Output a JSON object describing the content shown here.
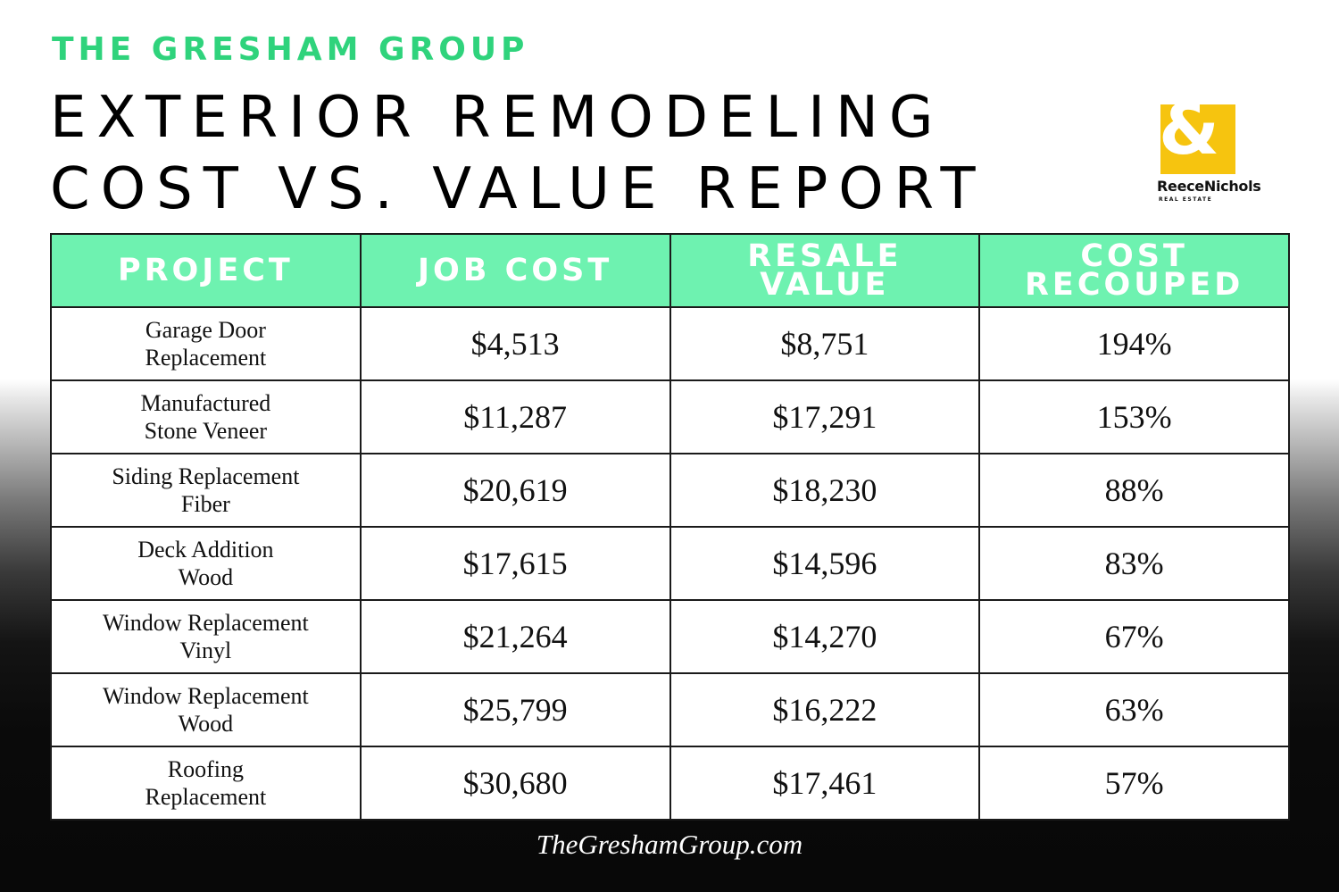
{
  "header": {
    "brand": "THE GRESHAM GROUP",
    "title_line1": "EXTERIOR REMODELING",
    "title_line2": "COST VS. VALUE REPORT"
  },
  "logo": {
    "symbol": "&",
    "name": "ReeceNichols",
    "subtitle": "REAL ESTATE",
    "accent_color": "#f6c40f"
  },
  "table": {
    "header_color": "#6ef2b0",
    "columns": [
      "PROJECT",
      "JOB COST",
      "RESALE VALUE",
      "COST RECOUPED"
    ],
    "rows": [
      {
        "project_line1": "Garage Door",
        "project_line2": "Replacement",
        "job_cost": "$4,513",
        "resale_value": "$8,751",
        "cost_recouped": "194%"
      },
      {
        "project_line1": "Manufactured",
        "project_line2": "Stone Veneer",
        "job_cost": "$11,287",
        "resale_value": "$17,291",
        "cost_recouped": "153%"
      },
      {
        "project_line1": "Siding Replacement",
        "project_line2": "Fiber",
        "job_cost": "$20,619",
        "resale_value": "$18,230",
        "cost_recouped": "88%"
      },
      {
        "project_line1": "Deck Addition",
        "project_line2": "Wood",
        "job_cost": "$17,615",
        "resale_value": "$14,596",
        "cost_recouped": "83%"
      },
      {
        "project_line1": "Window Replacement",
        "project_line2": "Vinyl",
        "job_cost": "$21,264",
        "resale_value": "$14,270",
        "cost_recouped": "67%"
      },
      {
        "project_line1": "Window Replacement",
        "project_line2": "Wood",
        "job_cost": "$25,799",
        "resale_value": "$16,222",
        "cost_recouped": "63%"
      },
      {
        "project_line1": "Roofing",
        "project_line2": "Replacement",
        "job_cost": "$30,680",
        "resale_value": "$17,461",
        "cost_recouped": "57%"
      }
    ]
  },
  "footer": {
    "website": "TheGreshamGroup.com"
  }
}
